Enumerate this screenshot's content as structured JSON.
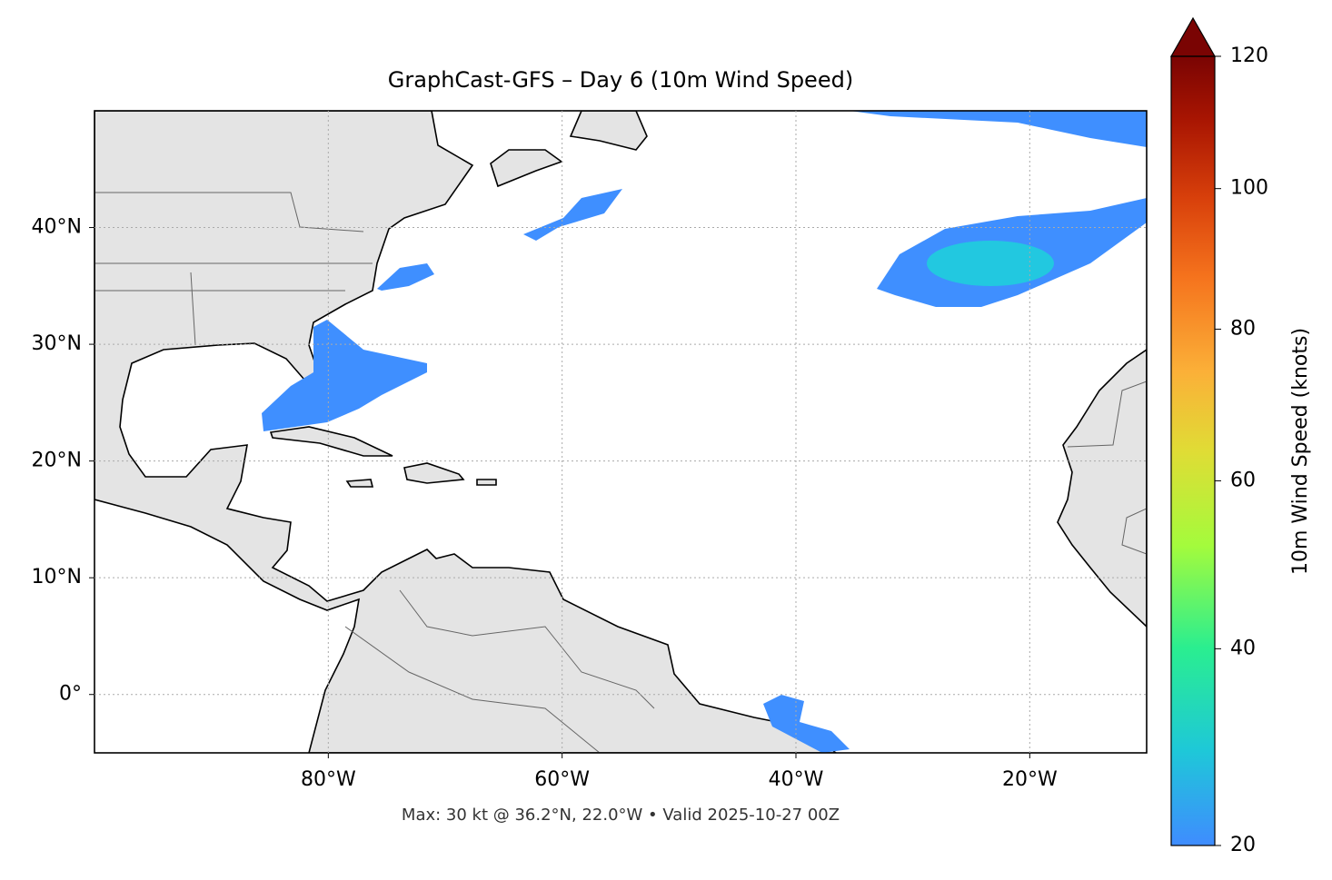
{
  "chart_data": {
    "type": "map",
    "title": "GraphCast-GFS – Day 6 (10m Wind Speed)",
    "footer": "Max: 30 kt @ 36.2°N, 22.0°W • Valid 2025-10-27 00Z",
    "xlim": [
      -100,
      -10
    ],
    "ylim": [
      -5,
      50
    ],
    "xticks": [
      {
        "value": -80,
        "label": "80°W"
      },
      {
        "value": -60,
        "label": "60°W"
      },
      {
        "value": -40,
        "label": "40°W"
      },
      {
        "value": -20,
        "label": "20°W"
      }
    ],
    "yticks": [
      {
        "value": 0,
        "label": "0°"
      },
      {
        "value": 10,
        "label": "10°N"
      },
      {
        "value": 20,
        "label": "20°N"
      },
      {
        "value": 30,
        "label": "30°N"
      },
      {
        "value": 40,
        "label": "40°N"
      }
    ],
    "grid": true,
    "colorbar": {
      "label": "10m Wind Speed (knots)",
      "lim": [
        20,
        120
      ],
      "ticks": [
        20,
        40,
        60,
        80,
        100,
        120
      ],
      "scale_exponent": 0.7
    }
  }
}
